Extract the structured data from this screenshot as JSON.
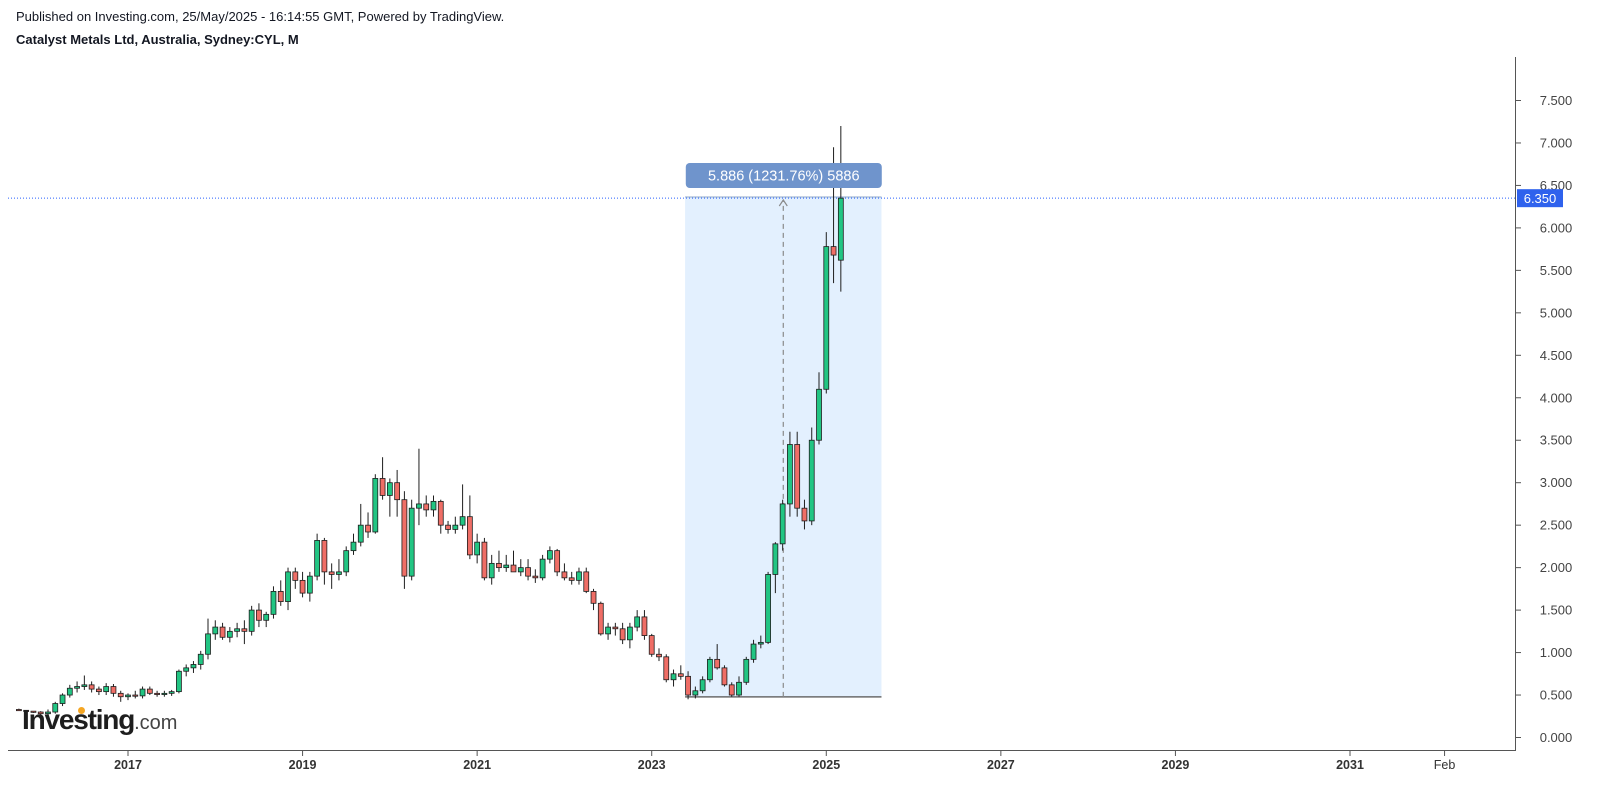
{
  "header": {
    "published": "Published on Investing.com, 25/May/2025 - 16:14:55 GMT, Powered by TradingView.",
    "symbol": "Catalyst Metals Ltd, Australia, Sydney:CYL, M"
  },
  "logo": {
    "brand": "Investing",
    "tld": ".com",
    "accent": "#f5a623"
  },
  "colors": {
    "up": "#089981",
    "upFill": "#22c583",
    "down": "#c23b3b",
    "downFill": "#ef6e66",
    "wick": "#1e1e1e",
    "measureFill": "#e3f0fe",
    "measureLabel": "#6f94cc",
    "priceLine": "#2962ff",
    "priceTag": "#2f62ed"
  },
  "chart_data": {
    "type": "candlestick",
    "interval": "monthly",
    "ylim": [
      -0.1,
      7.95
    ],
    "y_ticks": [
      "0.000",
      "0.500",
      "1.000",
      "1.500",
      "2.000",
      "2.500",
      "3.000",
      "3.500",
      "4.000",
      "4.500",
      "5.000",
      "5.500",
      "6.000",
      "6.500",
      "7.000",
      "7.500"
    ],
    "x_ticks": [
      {
        "label": "2017",
        "date": "2017-01"
      },
      {
        "label": "2019",
        "date": "2019-01"
      },
      {
        "label": "2021",
        "date": "2021-01"
      },
      {
        "label": "2023",
        "date": "2023-01"
      },
      {
        "label": "2025",
        "date": "2025-01"
      },
      {
        "label": "2027",
        "date": "2027-01"
      },
      {
        "label": "2029",
        "date": "2029-01"
      },
      {
        "label": "2031",
        "date": "2031-01"
      },
      {
        "label": "Feb",
        "date": "2032-02"
      }
    ],
    "series": [
      {
        "d": "2015-10",
        "o": 0.33,
        "h": 0.34,
        "l": 0.32,
        "c": 0.32
      },
      {
        "d": "2015-11",
        "o": 0.32,
        "h": 0.32,
        "l": 0.3,
        "c": 0.31
      },
      {
        "d": "2015-12",
        "o": 0.31,
        "h": 0.31,
        "l": 0.29,
        "c": 0.3
      },
      {
        "d": "2016-01",
        "o": 0.3,
        "h": 0.31,
        "l": 0.26,
        "c": 0.28
      },
      {
        "d": "2016-02",
        "o": 0.28,
        "h": 0.33,
        "l": 0.25,
        "c": 0.3
      },
      {
        "d": "2016-03",
        "o": 0.3,
        "h": 0.42,
        "l": 0.28,
        "c": 0.4
      },
      {
        "d": "2016-04",
        "o": 0.4,
        "h": 0.52,
        "l": 0.37,
        "c": 0.5
      },
      {
        "d": "2016-05",
        "o": 0.5,
        "h": 0.62,
        "l": 0.47,
        "c": 0.58
      },
      {
        "d": "2016-06",
        "o": 0.58,
        "h": 0.66,
        "l": 0.53,
        "c": 0.6
      },
      {
        "d": "2016-07",
        "o": 0.6,
        "h": 0.73,
        "l": 0.56,
        "c": 0.62
      },
      {
        "d": "2016-08",
        "o": 0.62,
        "h": 0.66,
        "l": 0.53,
        "c": 0.57
      },
      {
        "d": "2016-09",
        "o": 0.57,
        "h": 0.6,
        "l": 0.5,
        "c": 0.54
      },
      {
        "d": "2016-10",
        "o": 0.54,
        "h": 0.64,
        "l": 0.5,
        "c": 0.6
      },
      {
        "d": "2016-11",
        "o": 0.6,
        "h": 0.63,
        "l": 0.48,
        "c": 0.52
      },
      {
        "d": "2016-12",
        "o": 0.52,
        "h": 0.55,
        "l": 0.42,
        "c": 0.48
      },
      {
        "d": "2017-01",
        "o": 0.48,
        "h": 0.52,
        "l": 0.44,
        "c": 0.5
      },
      {
        "d": "2017-02",
        "o": 0.5,
        "h": 0.55,
        "l": 0.46,
        "c": 0.49
      },
      {
        "d": "2017-03",
        "o": 0.49,
        "h": 0.6,
        "l": 0.46,
        "c": 0.57
      },
      {
        "d": "2017-04",
        "o": 0.57,
        "h": 0.6,
        "l": 0.5,
        "c": 0.52
      },
      {
        "d": "2017-05",
        "o": 0.52,
        "h": 0.55,
        "l": 0.48,
        "c": 0.51
      },
      {
        "d": "2017-06",
        "o": 0.51,
        "h": 0.55,
        "l": 0.48,
        "c": 0.52
      },
      {
        "d": "2017-07",
        "o": 0.52,
        "h": 0.56,
        "l": 0.49,
        "c": 0.54
      },
      {
        "d": "2017-08",
        "o": 0.54,
        "h": 0.8,
        "l": 0.52,
        "c": 0.78
      },
      {
        "d": "2017-09",
        "o": 0.78,
        "h": 0.86,
        "l": 0.72,
        "c": 0.82
      },
      {
        "d": "2017-10",
        "o": 0.82,
        "h": 0.9,
        "l": 0.76,
        "c": 0.86
      },
      {
        "d": "2017-11",
        "o": 0.86,
        "h": 1.02,
        "l": 0.8,
        "c": 0.98
      },
      {
        "d": "2017-12",
        "o": 0.98,
        "h": 1.4,
        "l": 0.92,
        "c": 1.22
      },
      {
        "d": "2018-01",
        "o": 1.22,
        "h": 1.38,
        "l": 1.15,
        "c": 1.3
      },
      {
        "d": "2018-02",
        "o": 1.3,
        "h": 1.35,
        "l": 1.15,
        "c": 1.18
      },
      {
        "d": "2018-03",
        "o": 1.18,
        "h": 1.3,
        "l": 1.12,
        "c": 1.25
      },
      {
        "d": "2018-04",
        "o": 1.25,
        "h": 1.35,
        "l": 1.18,
        "c": 1.28
      },
      {
        "d": "2018-05",
        "o": 1.28,
        "h": 1.38,
        "l": 1.1,
        "c": 1.25
      },
      {
        "d": "2018-06",
        "o": 1.25,
        "h": 1.55,
        "l": 1.2,
        "c": 1.5
      },
      {
        "d": "2018-07",
        "o": 1.5,
        "h": 1.58,
        "l": 1.3,
        "c": 1.38
      },
      {
        "d": "2018-08",
        "o": 1.38,
        "h": 1.48,
        "l": 1.3,
        "c": 1.45
      },
      {
        "d": "2018-09",
        "o": 1.45,
        "h": 1.78,
        "l": 1.4,
        "c": 1.72
      },
      {
        "d": "2018-10",
        "o": 1.72,
        "h": 1.85,
        "l": 1.55,
        "c": 1.6
      },
      {
        "d": "2018-11",
        "o": 1.6,
        "h": 2.0,
        "l": 1.5,
        "c": 1.95
      },
      {
        "d": "2018-12",
        "o": 1.95,
        "h": 2.0,
        "l": 1.75,
        "c": 1.85
      },
      {
        "d": "2019-01",
        "o": 1.85,
        "h": 1.95,
        "l": 1.65,
        "c": 1.7
      },
      {
        "d": "2019-02",
        "o": 1.7,
        "h": 1.95,
        "l": 1.6,
        "c": 1.9
      },
      {
        "d": "2019-03",
        "o": 1.9,
        "h": 2.4,
        "l": 1.85,
        "c": 2.32
      },
      {
        "d": "2019-04",
        "o": 2.32,
        "h": 2.35,
        "l": 1.8,
        "c": 1.95
      },
      {
        "d": "2019-05",
        "o": 1.95,
        "h": 2.05,
        "l": 1.75,
        "c": 1.92
      },
      {
        "d": "2019-06",
        "o": 1.92,
        "h": 2.1,
        "l": 1.85,
        "c": 1.95
      },
      {
        "d": "2019-07",
        "o": 1.95,
        "h": 2.25,
        "l": 1.9,
        "c": 2.2
      },
      {
        "d": "2019-08",
        "o": 2.2,
        "h": 2.4,
        "l": 2.15,
        "c": 2.3
      },
      {
        "d": "2019-09",
        "o": 2.3,
        "h": 2.75,
        "l": 2.25,
        "c": 2.5
      },
      {
        "d": "2019-10",
        "o": 2.5,
        "h": 2.65,
        "l": 2.35,
        "c": 2.42
      },
      {
        "d": "2019-11",
        "o": 2.42,
        "h": 3.1,
        "l": 2.4,
        "c": 3.05
      },
      {
        "d": "2019-12",
        "o": 3.05,
        "h": 3.3,
        "l": 2.8,
        "c": 2.85
      },
      {
        "d": "2020-01",
        "o": 2.85,
        "h": 3.05,
        "l": 2.6,
        "c": 3.0
      },
      {
        "d": "2020-02",
        "o": 3.0,
        "h": 3.15,
        "l": 2.6,
        "c": 2.8
      },
      {
        "d": "2020-03",
        "o": 2.8,
        "h": 2.9,
        "l": 1.75,
        "c": 1.9
      },
      {
        "d": "2020-04",
        "o": 1.9,
        "h": 2.8,
        "l": 1.85,
        "c": 2.7
      },
      {
        "d": "2020-05",
        "o": 2.7,
        "h": 3.4,
        "l": 2.5,
        "c": 2.75
      },
      {
        "d": "2020-06",
        "o": 2.75,
        "h": 2.85,
        "l": 2.6,
        "c": 2.68
      },
      {
        "d": "2020-07",
        "o": 2.68,
        "h": 2.85,
        "l": 2.6,
        "c": 2.78
      },
      {
        "d": "2020-08",
        "o": 2.78,
        "h": 2.8,
        "l": 2.4,
        "c": 2.5
      },
      {
        "d": "2020-09",
        "o": 2.5,
        "h": 2.55,
        "l": 2.4,
        "c": 2.45
      },
      {
        "d": "2020-10",
        "o": 2.45,
        "h": 2.6,
        "l": 2.4,
        "c": 2.5
      },
      {
        "d": "2020-11",
        "o": 2.5,
        "h": 2.98,
        "l": 2.45,
        "c": 2.6
      },
      {
        "d": "2020-12",
        "o": 2.6,
        "h": 2.85,
        "l": 2.1,
        "c": 2.15
      },
      {
        "d": "2021-01",
        "o": 2.15,
        "h": 2.4,
        "l": 2.05,
        "c": 2.3
      },
      {
        "d": "2021-02",
        "o": 2.3,
        "h": 2.35,
        "l": 1.85,
        "c": 1.88
      },
      {
        "d": "2021-03",
        "o": 1.88,
        "h": 2.15,
        "l": 1.8,
        "c": 2.05
      },
      {
        "d": "2021-04",
        "o": 2.05,
        "h": 2.2,
        "l": 1.95,
        "c": 2.0
      },
      {
        "d": "2021-05",
        "o": 2.0,
        "h": 2.15,
        "l": 1.95,
        "c": 2.03
      },
      {
        "d": "2021-06",
        "o": 2.03,
        "h": 2.2,
        "l": 1.95,
        "c": 1.95
      },
      {
        "d": "2021-07",
        "o": 1.95,
        "h": 2.1,
        "l": 1.9,
        "c": 2.0
      },
      {
        "d": "2021-08",
        "o": 2.0,
        "h": 2.1,
        "l": 1.85,
        "c": 1.9
      },
      {
        "d": "2021-09",
        "o": 1.9,
        "h": 1.98,
        "l": 1.82,
        "c": 1.88
      },
      {
        "d": "2021-10",
        "o": 1.88,
        "h": 2.15,
        "l": 1.85,
        "c": 2.1
      },
      {
        "d": "2021-11",
        "o": 2.1,
        "h": 2.25,
        "l": 2.05,
        "c": 2.2
      },
      {
        "d": "2021-12",
        "o": 2.2,
        "h": 2.22,
        "l": 1.9,
        "c": 1.95
      },
      {
        "d": "2022-01",
        "o": 1.95,
        "h": 2.05,
        "l": 1.85,
        "c": 1.88
      },
      {
        "d": "2022-02",
        "o": 1.88,
        "h": 1.95,
        "l": 1.8,
        "c": 1.85
      },
      {
        "d": "2022-03",
        "o": 1.85,
        "h": 2.0,
        "l": 1.8,
        "c": 1.95
      },
      {
        "d": "2022-04",
        "o": 1.95,
        "h": 2.0,
        "l": 1.7,
        "c": 1.72
      },
      {
        "d": "2022-05",
        "o": 1.72,
        "h": 1.75,
        "l": 1.5,
        "c": 1.58
      },
      {
        "d": "2022-06",
        "o": 1.58,
        "h": 1.6,
        "l": 1.2,
        "c": 1.22
      },
      {
        "d": "2022-07",
        "o": 1.22,
        "h": 1.35,
        "l": 1.15,
        "c": 1.3
      },
      {
        "d": "2022-08",
        "o": 1.3,
        "h": 1.35,
        "l": 1.2,
        "c": 1.28
      },
      {
        "d": "2022-09",
        "o": 1.28,
        "h": 1.35,
        "l": 1.1,
        "c": 1.15
      },
      {
        "d": "2022-10",
        "o": 1.15,
        "h": 1.35,
        "l": 1.05,
        "c": 1.3
      },
      {
        "d": "2022-11",
        "o": 1.3,
        "h": 1.5,
        "l": 1.25,
        "c": 1.42
      },
      {
        "d": "2022-12",
        "o": 1.42,
        "h": 1.5,
        "l": 1.15,
        "c": 1.2
      },
      {
        "d": "2023-01",
        "o": 1.2,
        "h": 1.22,
        "l": 0.95,
        "c": 0.98
      },
      {
        "d": "2023-02",
        "o": 0.98,
        "h": 1.05,
        "l": 0.9,
        "c": 0.95
      },
      {
        "d": "2023-03",
        "o": 0.95,
        "h": 0.98,
        "l": 0.65,
        "c": 0.68
      },
      {
        "d": "2023-04",
        "o": 0.68,
        "h": 0.8,
        "l": 0.6,
        "c": 0.75
      },
      {
        "d": "2023-05",
        "o": 0.75,
        "h": 0.85,
        "l": 0.68,
        "c": 0.72
      },
      {
        "d": "2023-06",
        "o": 0.72,
        "h": 0.78,
        "l": 0.45,
        "c": 0.5
      },
      {
        "d": "2023-07",
        "o": 0.5,
        "h": 0.6,
        "l": 0.46,
        "c": 0.55
      },
      {
        "d": "2023-08",
        "o": 0.55,
        "h": 0.72,
        "l": 0.52,
        "c": 0.68
      },
      {
        "d": "2023-09",
        "o": 0.68,
        "h": 0.95,
        "l": 0.65,
        "c": 0.92
      },
      {
        "d": "2023-10",
        "o": 0.92,
        "h": 1.1,
        "l": 0.8,
        "c": 0.82
      },
      {
        "d": "2023-11",
        "o": 0.82,
        "h": 0.85,
        "l": 0.6,
        "c": 0.62
      },
      {
        "d": "2023-12",
        "o": 0.62,
        "h": 0.65,
        "l": 0.48,
        "c": 0.5
      },
      {
        "d": "2024-01",
        "o": 0.5,
        "h": 0.72,
        "l": 0.48,
        "c": 0.65
      },
      {
        "d": "2024-02",
        "o": 0.65,
        "h": 0.95,
        "l": 0.62,
        "c": 0.92
      },
      {
        "d": "2024-03",
        "o": 0.92,
        "h": 1.15,
        "l": 0.88,
        "c": 1.1
      },
      {
        "d": "2024-04",
        "o": 1.1,
        "h": 1.2,
        "l": 1.05,
        "c": 1.12
      },
      {
        "d": "2024-05",
        "o": 1.12,
        "h": 1.95,
        "l": 1.1,
        "c": 1.92
      },
      {
        "d": "2024-06",
        "o": 1.92,
        "h": 2.3,
        "l": 1.7,
        "c": 2.28
      },
      {
        "d": "2024-07",
        "o": 2.28,
        "h": 2.8,
        "l": 2.2,
        "c": 2.75
      },
      {
        "d": "2024-08",
        "o": 2.75,
        "h": 3.6,
        "l": 2.6,
        "c": 3.45
      },
      {
        "d": "2024-09",
        "o": 3.45,
        "h": 3.6,
        "l": 2.6,
        "c": 2.7
      },
      {
        "d": "2024-10",
        "o": 2.7,
        "h": 2.8,
        "l": 2.45,
        "c": 2.55
      },
      {
        "d": "2024-11",
        "o": 2.55,
        "h": 3.65,
        "l": 2.5,
        "c": 3.5
      },
      {
        "d": "2024-12",
        "o": 3.5,
        "h": 4.3,
        "l": 3.45,
        "c": 4.1
      },
      {
        "d": "2025-01",
        "o": 4.1,
        "h": 5.95,
        "l": 4.05,
        "c": 5.78
      },
      {
        "d": "2025-02",
        "o": 5.78,
        "h": 6.95,
        "l": 5.35,
        "c": 5.68
      },
      {
        "d": "2025-03",
        "o": 5.62,
        "h": 7.2,
        "l": 5.25,
        "c": 6.35
      }
    ],
    "last_price": 6.35,
    "last_price_label": "6.350",
    "measure": {
      "label": "5.886 (1231.76%) 5886",
      "from_date": "2023-06",
      "to_date": "2025-09",
      "low": 0.478,
      "high": 6.364
    }
  }
}
